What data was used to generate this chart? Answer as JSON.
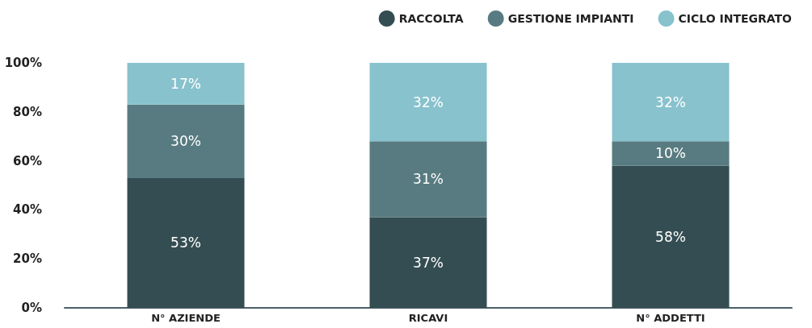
{
  "chart_data": {
    "type": "bar",
    "stacked": true,
    "categories": [
      "N° AZIENDE",
      "RICAVI",
      "N° ADDETTI"
    ],
    "series": [
      {
        "name": "RACCOLTA",
        "color": "#344d52",
        "values": [
          53,
          37,
          58
        ],
        "value_labels": [
          "53%",
          "37%",
          "58%"
        ]
      },
      {
        "name": "GESTIONE IMPIANTI",
        "color": "#577b80",
        "values": [
          30,
          31,
          10
        ],
        "value_labels": [
          "30%",
          "31%",
          "10%"
        ]
      },
      {
        "name": "CICLO INTEGRATO",
        "color": "#87c2cd",
        "values": [
          17,
          32,
          32
        ],
        "value_labels": [
          "17%",
          "32%",
          "32%"
        ]
      }
    ],
    "ylim": [
      0,
      100
    ],
    "yticks": [
      {
        "value": 0,
        "label": "0%"
      },
      {
        "value": 20,
        "label": "20%"
      },
      {
        "value": 40,
        "label": "40%"
      },
      {
        "value": 60,
        "label": "60%"
      },
      {
        "value": 80,
        "label": "80%"
      },
      {
        "value": 100,
        "label": "100%"
      }
    ],
    "grid": false,
    "legend": "top right"
  }
}
